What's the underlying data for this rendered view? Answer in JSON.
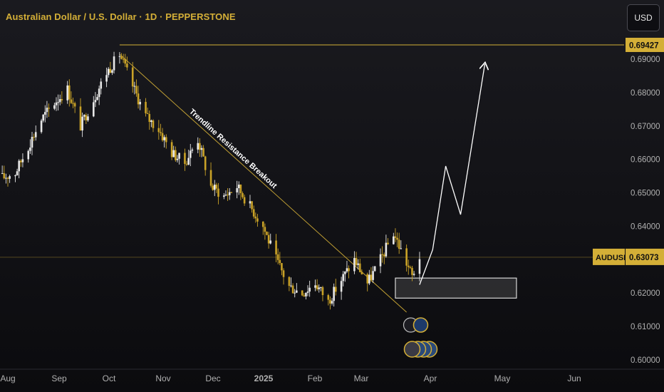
{
  "header": {
    "title": "Australian Dollar / U.S. Dollar · 1D · PEPPERSTONE",
    "currency_button": "USD"
  },
  "colors": {
    "background": "#0e0e12",
    "accent": "#d4af37",
    "candle_up": "#e8e8e8",
    "candle_down": "#c9a227",
    "axis_text": "#b0b0b0",
    "projection": "#ffffff"
  },
  "chart_data": {
    "type": "candlestick",
    "symbol": "AUDUSD",
    "ylim": [
      0.6,
      0.699
    ],
    "y_ticks": [
      "0.69000",
      "0.68000",
      "0.67000",
      "0.66000",
      "0.65000",
      "0.64000",
      "0.62000",
      "0.61000",
      "0.60000"
    ],
    "x_ticks": [
      "Aug",
      "Sep",
      "Oct",
      "Nov",
      "Dec",
      "2025",
      "Feb",
      "Mar",
      "Apr",
      "May",
      "Jun"
    ],
    "high_line": {
      "value": 0.69427,
      "label": "0.69427"
    },
    "current_price": {
      "symbol": "AUDUSD",
      "value": 0.63073,
      "label": "0.63073"
    },
    "trendline": {
      "label": "Trendline Resistance Breakout",
      "from": {
        "date": "2024-09-30",
        "value": 0.6915
      },
      "to": {
        "date": "2025-03-03",
        "value": 0.6143
      }
    },
    "support_zone": {
      "from_date": "2025-02-25",
      "to_date": "2025-05-01",
      "low": 0.6185,
      "high": 0.6245
    },
    "projection_path": [
      {
        "date": "2025-03-10",
        "value": 0.6225
      },
      {
        "date": "2025-03-17",
        "value": 0.633
      },
      {
        "date": "2025-03-24",
        "value": 0.658
      },
      {
        "date": "2025-04-01",
        "value": 0.6435
      },
      {
        "date": "2025-04-14",
        "value": 0.6885
      }
    ],
    "price_path": [
      {
        "date": "2024-07-29",
        "value": 0.6545
      },
      {
        "date": "2024-08-05",
        "value": 0.656
      },
      {
        "date": "2024-08-12",
        "value": 0.664
      },
      {
        "date": "2024-08-19",
        "value": 0.672
      },
      {
        "date": "2024-08-26",
        "value": 0.677
      },
      {
        "date": "2024-09-02",
        "value": 0.681
      },
      {
        "date": "2024-09-09",
        "value": 0.67
      },
      {
        "date": "2024-09-16",
        "value": 0.678
      },
      {
        "date": "2024-09-23",
        "value": 0.686
      },
      {
        "date": "2024-09-30",
        "value": 0.6915
      },
      {
        "date": "2024-10-07",
        "value": 0.682
      },
      {
        "date": "2024-10-14",
        "value": 0.673
      },
      {
        "date": "2024-10-21",
        "value": 0.669
      },
      {
        "date": "2024-10-28",
        "value": 0.662
      },
      {
        "date": "2024-11-04",
        "value": 0.659
      },
      {
        "date": "2024-11-11",
        "value": 0.666
      },
      {
        "date": "2024-11-18",
        "value": 0.652
      },
      {
        "date": "2024-11-25",
        "value": 0.649
      },
      {
        "date": "2024-12-02",
        "value": 0.652
      },
      {
        "date": "2024-12-09",
        "value": 0.646
      },
      {
        "date": "2024-12-16",
        "value": 0.64
      },
      {
        "date": "2024-12-23",
        "value": 0.63
      },
      {
        "date": "2024-12-30",
        "value": 0.622
      },
      {
        "date": "2025-01-06",
        "value": 0.62
      },
      {
        "date": "2025-01-13",
        "value": 0.623
      },
      {
        "date": "2025-01-20",
        "value": 0.6175
      },
      {
        "date": "2025-01-27",
        "value": 0.624
      },
      {
        "date": "2025-02-03",
        "value": 0.63
      },
      {
        "date": "2025-02-10",
        "value": 0.623
      },
      {
        "date": "2025-02-17",
        "value": 0.63
      },
      {
        "date": "2025-02-24",
        "value": 0.638
      },
      {
        "date": "2025-03-03",
        "value": 0.629
      },
      {
        "date": "2025-03-06",
        "value": 0.625
      },
      {
        "date": "2025-03-10",
        "value": 0.631
      }
    ]
  }
}
